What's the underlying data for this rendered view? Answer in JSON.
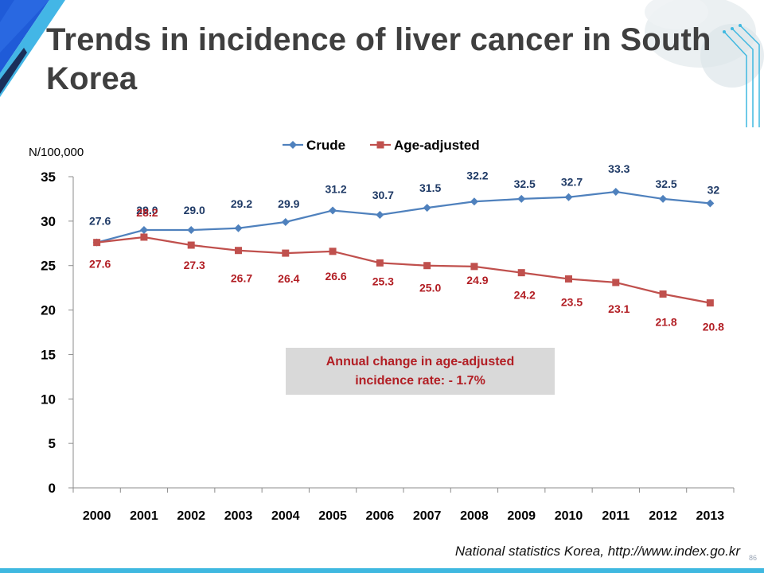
{
  "title": "Trends in incidence of liver cancer in South Korea",
  "source": "National statistics Korea, http://www.index.go.kr",
  "page_number": "86",
  "colors": {
    "crude": "#4f81bd",
    "crude_label": "#1f3a66",
    "age_adjusted": "#c0504d",
    "age_adjusted_label": "#b21e24",
    "note_bg": "#d9d9d9",
    "accent": "#3fb8e0"
  },
  "chart_data": {
    "type": "line",
    "title": "",
    "ylabel": "N/100,000",
    "xlabel": "",
    "categories": [
      "2000",
      "2001",
      "2002",
      "2003",
      "2004",
      "2005",
      "2006",
      "2007",
      "2008",
      "2009",
      "2010",
      "2011",
      "2012",
      "2013"
    ],
    "ylim": [
      0,
      35
    ],
    "yticks": [
      0,
      5,
      10,
      15,
      20,
      25,
      30,
      35
    ],
    "legend_position": "top",
    "grid": false,
    "series": [
      {
        "name": "Crude",
        "marker": "diamond",
        "values": [
          27.6,
          29.0,
          29.0,
          29.2,
          29.9,
          31.2,
          30.7,
          31.5,
          32.2,
          32.5,
          32.7,
          33.3,
          32.5,
          32
        ],
        "labels": [
          "27.6",
          "29.0",
          "29.0",
          "29.2",
          "29.9",
          "31.2",
          "30.7",
          "31.5",
          "32.2",
          "32.5",
          "32.7",
          "33.3",
          "32.5",
          "32"
        ]
      },
      {
        "name": "Age-adjusted",
        "marker": "square",
        "values": [
          27.6,
          28.2,
          27.3,
          26.7,
          26.4,
          26.6,
          25.3,
          25.0,
          24.9,
          24.2,
          23.5,
          23.1,
          21.8,
          20.8
        ],
        "labels": [
          "27.6",
          "28.2",
          "27.3",
          "26.7",
          "26.4",
          "26.6",
          "25.3",
          "25.0",
          "24.9",
          "24.2",
          "23.5",
          "23.1",
          "21.8",
          "20.8"
        ]
      }
    ],
    "annotation": "Annual change in age-adjusted incidence rate: - 1.7%"
  }
}
